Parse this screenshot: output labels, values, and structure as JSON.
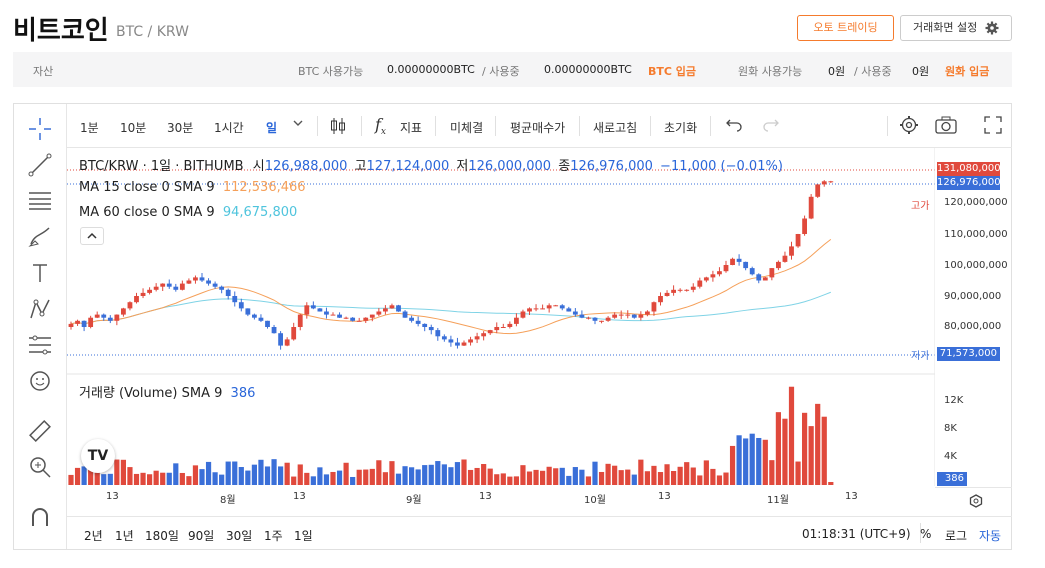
{
  "header": {
    "title": "비트코인",
    "subtitle": "BTC / KRW",
    "auto_trade_label": "오토 트레이딩",
    "screen_settings_label": "거래화면 설정"
  },
  "assets": {
    "label": "자산",
    "btc_available_label": "BTC 사용가능",
    "btc_available_value": "0.00000000BTC",
    "btc_in_use_label": "/ 사용중",
    "btc_in_use_value": "0.00000000BTC",
    "btc_deposit_label": "BTC 입금",
    "krw_available_label": "원화 사용가능",
    "krw_available_value": "0원",
    "krw_in_use_label": "/ 사용중",
    "krw_in_use_value": "0원",
    "krw_deposit_label": "원화 입금"
  },
  "toolbar": {
    "intervals": [
      "1분",
      "10분",
      "30분",
      "1시간",
      "일"
    ],
    "indicators_label": "지표",
    "unfilled_label": "미체결",
    "avg_price_label": "평균매수가",
    "refresh_label": "새로고침",
    "reset_label": "초기화"
  },
  "legend": {
    "symbol": "BTC/KRW · 1일 · BITHUMB",
    "open_label": "시",
    "open": "126,988,000",
    "high_label": "고",
    "high": "127,124,000",
    "low_label": "저",
    "low": "126,000,000",
    "close_label": "종",
    "close": "126,976,000",
    "change": "−11,000 (−0.01%)",
    "ma15_label": "MA 15 close 0 SMA 9",
    "ma15_value": "112,536,466",
    "ma60_label": "MA 60 close 0 SMA 9",
    "ma60_value": "94,675,800",
    "volume_label": "거래량 (Volume) SMA 9",
    "volume_value": "386"
  },
  "price_axis": {
    "high_tag": "고가",
    "low_tag": "저가",
    "high_value": "131,080,000",
    "current_value": "126,976,000",
    "low_value": "71,573,000",
    "ticks": [
      "120,000,000",
      "110,000,000",
      "100,000,000",
      "90,000,000",
      "80,000,000"
    ],
    "volume_ticks": [
      "12K",
      "8K",
      "4K"
    ],
    "volume_current": "386"
  },
  "time_axis": [
    "13",
    "8월",
    "13",
    "9월",
    "13",
    "10월",
    "13",
    "11월",
    "13"
  ],
  "bottom": {
    "ranges": [
      "2년",
      "1년",
      "180일",
      "90일",
      "30일",
      "1주",
      "1일"
    ],
    "clock": "01:18:31 (UTC+9)",
    "percent_label": "%",
    "log_label": "로그",
    "auto_label": "자동"
  },
  "colors": {
    "up": "#e0493c",
    "down": "#3a6fd8",
    "ma15": "#f5a05a",
    "ma60": "#7fd3e6",
    "accent": "#f57b2d"
  },
  "chart_data": {
    "type": "candlestick",
    "title": "BTC/KRW · 1일 · BITHUMB",
    "y_unit": "KRW",
    "ylim": [
      71573000,
      131080000
    ],
    "close_series": [
      81,
      82,
      80,
      83,
      84,
      83,
      82,
      84,
      86,
      88,
      90,
      91,
      92,
      93,
      94,
      93,
      92,
      94,
      95,
      96,
      95,
      94,
      93,
      92,
      90,
      88,
      86,
      84,
      83,
      82,
      80,
      78,
      74,
      76,
      80,
      84,
      87,
      86,
      85,
      84,
      84,
      83,
      83,
      82,
      82,
      83,
      84,
      85,
      86,
      87,
      85,
      83,
      82,
      81,
      80,
      79,
      77,
      76,
      75,
      74,
      75,
      76,
      77,
      78,
      79,
      80,
      80,
      81,
      83,
      85,
      86,
      86,
      86,
      87,
      87,
      86,
      85,
      84,
      83,
      83,
      82,
      82,
      83,
      84,
      84,
      84,
      83,
      84,
      85,
      88,
      90,
      91,
      92,
      92,
      92,
      93,
      95,
      96,
      97,
      98,
      100,
      102,
      101,
      99,
      97,
      95,
      96,
      99,
      101,
      103,
      106,
      110,
      115,
      122,
      126,
      127,
      127
    ]
  }
}
